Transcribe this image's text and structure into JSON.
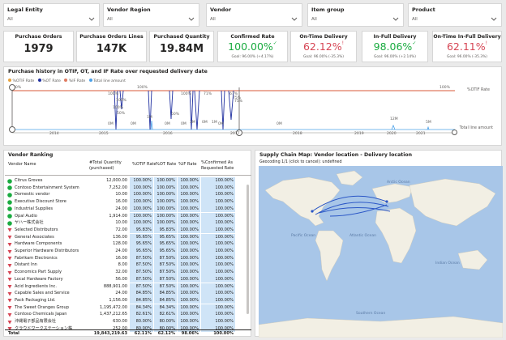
{
  "slicers": [
    {
      "label": "Legal Entity",
      "value": "All"
    },
    {
      "label": "Vendor Region",
      "value": "All"
    },
    {
      "label": "Vendor",
      "value": "All"
    },
    {
      "label": "Item group",
      "value": "All"
    },
    {
      "label": "Product",
      "value": "All"
    }
  ],
  "kpis": [
    {
      "title": "Purchase Orders",
      "value": "1979"
    },
    {
      "title": "Purchase Orders Lines",
      "value": "147K"
    },
    {
      "title": "Purchased Quantity",
      "value": "19.84M"
    },
    {
      "title": "Confirmed Rate",
      "value": "100.00%",
      "mark": "✓",
      "goal": "Goal: 96.00% (+4.17%)",
      "color": "#1aab40"
    },
    {
      "title": "On-Time Delivery",
      "value": "62.12%",
      "mark": "!",
      "goal": "Goal: 96.00% (-35.3%)",
      "color": "#d64554"
    },
    {
      "title": "In-Full Delivery",
      "value": "98.06%",
      "mark": "✓",
      "goal": "Goal: 96.00% (+2.14%)",
      "color": "#1aab40"
    },
    {
      "title": "On-Time In-Full Delivery",
      "value": "62.11%",
      "mark": "!",
      "goal": "Goal: 96.00% (-35.3%)",
      "color": "#d64554"
    }
  ],
  "history": {
    "title": "Purchase history in OTIF, OT, and IF Rate over requested delivery date",
    "legend": [
      {
        "name": "%OTIF Rate",
        "color": "#e8a33d"
      },
      {
        "name": "%OT Rate",
        "color": "#1f2fa0"
      },
      {
        "name": "%IF Rate",
        "color": "#e07a5f"
      },
      {
        "name": "Total line amount",
        "color": "#4aa0e8"
      }
    ],
    "left_tick": "100%",
    "right_labels": [
      "%OTIF Rate",
      "Total line amount"
    ],
    "years": [
      "2014",
      "2015",
      "2016",
      "2017",
      "2018",
      "2019",
      "2020",
      "2021"
    ],
    "pct_labels": [
      "100%",
      "100%",
      "100%",
      "50%",
      "100%",
      "50%",
      "71%",
      "67%",
      "75%",
      "75%",
      "100%",
      "100%"
    ],
    "amt_labels": [
      "0M",
      "0M",
      "1M",
      "0M",
      "0M",
      "3M",
      "0M",
      "1M",
      "0M",
      "0M",
      "12M",
      "5M"
    ]
  },
  "vendor_ranking": {
    "title": "Vendor Ranking",
    "columns": [
      "Vendor Name",
      "#Total Quantity (purchased)",
      "%OTIF Rate",
      "%OT Rate",
      "%IF Rate",
      "%Confirmed As Requested Rate"
    ],
    "rows": [
      {
        "icon": "green",
        "name": "Citrus Groves",
        "qty": "12,000.00",
        "otif": "100.00%",
        "ot": "100.00%",
        "if": "100.00%",
        "conf": "100.00%"
      },
      {
        "icon": "green",
        "name": "Contoso Entertainment System",
        "qty": "7,252.00",
        "otif": "100.00%",
        "ot": "100.00%",
        "if": "100.00%",
        "conf": "100.00%"
      },
      {
        "icon": "green",
        "name": "Domestic vendor",
        "qty": "10.00",
        "otif": "100.00%",
        "ot": "100.00%",
        "if": "100.00%",
        "conf": "100.00%"
      },
      {
        "icon": "green",
        "name": "Executive Discount Store",
        "qty": "16.00",
        "otif": "100.00%",
        "ot": "100.00%",
        "if": "100.00%",
        "conf": "100.00%"
      },
      {
        "icon": "green",
        "name": "Industrial Supplies",
        "qty": "24.00",
        "otif": "100.00%",
        "ot": "100.00%",
        "if": "100.00%",
        "conf": "100.00%"
      },
      {
        "icon": "green",
        "name": "Opal Audio",
        "qty": "1,914.00",
        "otif": "100.00%",
        "ot": "100.00%",
        "if": "100.00%",
        "conf": "100.00%"
      },
      {
        "icon": "green",
        "name": "ヤハー株式会社",
        "qty": "10.00",
        "otif": "100.00%",
        "ot": "100.00%",
        "if": "100.00%",
        "conf": "100.00%"
      },
      {
        "icon": "red",
        "name": "Selected Distributors",
        "qty": "72.00",
        "otif": "95.83%",
        "ot": "95.83%",
        "if": "100.00%",
        "conf": "100.00%"
      },
      {
        "icon": "red",
        "name": "General Associates",
        "qty": "136.00",
        "otif": "95.65%",
        "ot": "95.65%",
        "if": "100.00%",
        "conf": "100.00%"
      },
      {
        "icon": "red",
        "name": "Hardware Components",
        "qty": "128.00",
        "otif": "95.65%",
        "ot": "95.65%",
        "if": "100.00%",
        "conf": "100.00%"
      },
      {
        "icon": "red",
        "name": "Superior Hardware Distributors",
        "qty": "24.00",
        "otif": "95.65%",
        "ot": "95.65%",
        "if": "100.00%",
        "conf": "100.00%"
      },
      {
        "icon": "red",
        "name": "Fabrikam Electronics",
        "qty": "16.00",
        "otif": "87.50%",
        "ot": "87.50%",
        "if": "100.00%",
        "conf": "100.00%"
      },
      {
        "icon": "red",
        "name": "Distant Inn",
        "qty": "8.00",
        "otif": "87.50%",
        "ot": "87.50%",
        "if": "100.00%",
        "conf": "100.00%"
      },
      {
        "icon": "red",
        "name": "Economics Part Supply",
        "qty": "32.00",
        "otif": "87.50%",
        "ot": "87.50%",
        "if": "100.00%",
        "conf": "100.00%"
      },
      {
        "icon": "red",
        "name": "Local Hardware Factory",
        "qty": "56.00",
        "otif": "87.50%",
        "ot": "87.50%",
        "if": "100.00%",
        "conf": "100.00%"
      },
      {
        "icon": "red",
        "name": "Acid Ingredients Inc.",
        "qty": "888,901.00",
        "otif": "87.50%",
        "ot": "87.50%",
        "if": "100.00%",
        "conf": "100.00%"
      },
      {
        "icon": "red",
        "name": "Capable Sales and Service",
        "qty": "24.00",
        "otif": "84.85%",
        "ot": "84.85%",
        "if": "100.00%",
        "conf": "100.00%"
      },
      {
        "icon": "red",
        "name": "Pack Packaging Ltd.",
        "qty": "1,156.00",
        "otif": "84.85%",
        "ot": "84.85%",
        "if": "100.00%",
        "conf": "100.00%"
      },
      {
        "icon": "red",
        "name": "The Sweet Oranges Group",
        "qty": "1,195,472.00",
        "otif": "84.34%",
        "ot": "84.34%",
        "if": "100.00%",
        "conf": "100.00%"
      },
      {
        "icon": "red",
        "name": "Contoso Chemicals Japan",
        "qty": "1,437,212.65",
        "otif": "82.61%",
        "ot": "82.61%",
        "if": "100.00%",
        "conf": "100.00%"
      },
      {
        "icon": "red",
        "name": "沖縄電子部品有限会社",
        "qty": "630.00",
        "otif": "80.00%",
        "ot": "80.00%",
        "if": "100.00%",
        "conf": "100.00%"
      },
      {
        "icon": "red",
        "name": "クラウドワークステーション株",
        "qty": "252.00",
        "otif": "80.00%",
        "ot": "80.00%",
        "if": "100.00%",
        "conf": "100.00%"
      }
    ],
    "total": {
      "name": "Total",
      "qty": "19,843,219.63",
      "otif": "62.11%",
      "ot": "62.12%",
      "if": "98.06%",
      "conf": "100.00%"
    }
  },
  "map": {
    "title": "Supply Chain Map: Vendor location - Delivery location",
    "status": "Geocoding 1/1 (click to cancel): undefined",
    "oceans": [
      "Arctic Ocean",
      "Pacific Ocean",
      "Atlantic Ocean",
      "Indian Ocean",
      "Southern Ocean"
    ]
  },
  "colors": {
    "accent": "#118dff",
    "good": "#1aab40",
    "bad": "#d64554",
    "cell": "#cfe4f7"
  }
}
